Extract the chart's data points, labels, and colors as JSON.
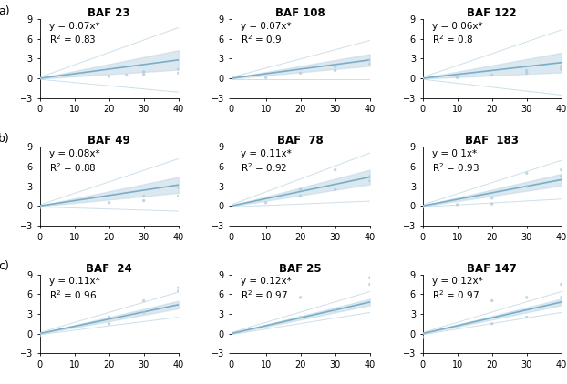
{
  "panels": [
    {
      "title": "BAF 23",
      "slope": 0.07,
      "r2": 0.83,
      "row": 0,
      "col": 0
    },
    {
      "title": "BAF 108",
      "slope": 0.07,
      "r2": 0.9,
      "row": 0,
      "col": 1
    },
    {
      "title": "BAF 122",
      "slope": 0.06,
      "r2": 0.8,
      "row": 0,
      "col": 2
    },
    {
      "title": "BAF 49",
      "slope": 0.08,
      "r2": 0.88,
      "row": 1,
      "col": 0
    },
    {
      "title": "BAF  78",
      "slope": 0.11,
      "r2": 0.92,
      "row": 1,
      "col": 1
    },
    {
      "title": "BAF  183",
      "slope": 0.1,
      "r2": 0.93,
      "row": 1,
      "col": 2
    },
    {
      "title": "BAF  24",
      "slope": 0.11,
      "r2": 0.96,
      "row": 2,
      "col": 0
    },
    {
      "title": "BAF 25",
      "slope": 0.12,
      "r2": 0.97,
      "row": 2,
      "col": 1
    },
    {
      "title": "BAF 147",
      "slope": 0.12,
      "r2": 0.97,
      "row": 2,
      "col": 2
    }
  ],
  "scatter_data": [
    [
      [
        0,
        0,
        20,
        25,
        30,
        30,
        40,
        40
      ],
      [
        0.0,
        0.0,
        0.3,
        0.5,
        0.6,
        1.0,
        0.8,
        1.4
      ]
    ],
    [
      [
        0,
        10,
        20,
        30,
        30,
        40,
        40
      ],
      [
        0.0,
        0.1,
        0.8,
        1.2,
        1.8,
        2.2,
        2.8
      ]
    ],
    [
      [
        0,
        10,
        20,
        30,
        30,
        40,
        40
      ],
      [
        0.0,
        0.1,
        0.5,
        0.8,
        1.2,
        1.4,
        1.8
      ]
    ],
    [
      [
        0,
        0,
        20,
        30,
        30,
        40,
        40
      ],
      [
        -0.3,
        0.0,
        0.5,
        0.8,
        1.5,
        1.5,
        2.8
      ]
    ],
    [
      [
        0,
        0,
        10,
        20,
        20,
        30,
        30,
        40,
        40
      ],
      [
        -0.2,
        0.0,
        0.5,
        1.5,
        2.5,
        2.5,
        5.5,
        3.8,
        4.5
      ]
    ],
    [
      [
        0,
        0,
        10,
        20,
        20,
        30,
        30,
        40,
        40
      ],
      [
        -0.2,
        0.0,
        0.2,
        0.3,
        1.2,
        3.0,
        5.0,
        4.5,
        5.5
      ]
    ],
    [
      [
        0,
        0,
        20,
        20,
        30,
        30,
        40,
        40
      ],
      [
        -0.3,
        0.0,
        1.5,
        2.5,
        3.2,
        5.0,
        6.5,
        7.0
      ]
    ],
    [
      [
        0,
        0,
        20,
        20,
        30,
        40,
        40
      ],
      [
        -0.5,
        0.0,
        2.5,
        5.5,
        3.5,
        7.5,
        8.5
      ]
    ],
    [
      [
        0,
        0,
        20,
        20,
        30,
        30,
        40,
        40
      ],
      [
        -0.5,
        0.0,
        1.5,
        5.0,
        2.5,
        5.5,
        5.5,
        7.5
      ]
    ]
  ],
  "line_color": "#7aaec8",
  "scatter_color": "#b0c8d8",
  "ci_color": "#c8dce8",
  "conf_line_color": "#c8dce8",
  "xlim": [
    0,
    40
  ],
  "xticks": [
    0,
    10,
    20,
    30,
    40
  ],
  "yticks": [
    -3,
    0,
    3,
    6,
    9
  ],
  "ylim": [
    -3,
    9
  ],
  "title_fontsize": 8.5,
  "label_fontsize": 7,
  "eq_fontsize": 7.5,
  "row_label_fontsize": 9,
  "row_labels": [
    "a)",
    "b)",
    "c)"
  ]
}
